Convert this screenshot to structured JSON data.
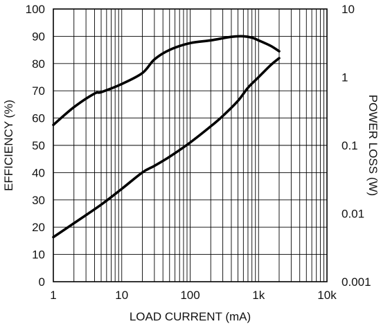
{
  "chart_data": {
    "type": "line",
    "title": "",
    "xlabel": "LOAD CURRENT (mA)",
    "ylabel": "EFFICIENCY (%)",
    "y2label": "POWER LOSS (W)",
    "xscale": "log",
    "xlim": [
      1,
      10000
    ],
    "x_ticks": [
      {
        "value": 1,
        "label": "1"
      },
      {
        "value": 10,
        "label": "10"
      },
      {
        "value": 100,
        "label": "100"
      },
      {
        "value": 1000,
        "label": "1k"
      },
      {
        "value": 10000,
        "label": "10k"
      }
    ],
    "ylim": [
      0,
      100
    ],
    "y_ticks": [
      0,
      10,
      20,
      30,
      40,
      50,
      60,
      70,
      80,
      90,
      100
    ],
    "y2scale": "log",
    "y2lim": [
      0.001,
      10
    ],
    "y2_ticks": [
      {
        "value": 0.001,
        "label": "0.001"
      },
      {
        "value": 0.01,
        "label": "0.01"
      },
      {
        "value": 0.1,
        "label": "0.1"
      },
      {
        "value": 1,
        "label": "1"
      },
      {
        "value": 10,
        "label": "10"
      }
    ],
    "grid": true,
    "series": [
      {
        "axis": "left",
        "x": [
          1,
          2,
          4,
          5,
          10,
          20,
          30,
          50,
          100,
          200,
          400,
          600,
          800,
          1000,
          1500,
          2000
        ],
        "y": [
          57.5,
          64,
          69,
          69.5,
          72.5,
          76.5,
          81.5,
          85,
          87.5,
          88.5,
          89.8,
          90,
          89.5,
          88.5,
          86.5,
          84.5
        ]
      },
      {
        "axis": "right",
        "x": [
          1,
          2,
          5,
          10,
          20,
          30,
          50,
          100,
          200,
          300,
          500,
          700,
          1000,
          1500,
          2000
        ],
        "y": [
          0.0045,
          0.0072,
          0.0135,
          0.023,
          0.04,
          0.05,
          0.068,
          0.11,
          0.19,
          0.27,
          0.45,
          0.7,
          1.0,
          1.5,
          1.9
        ]
      }
    ]
  }
}
